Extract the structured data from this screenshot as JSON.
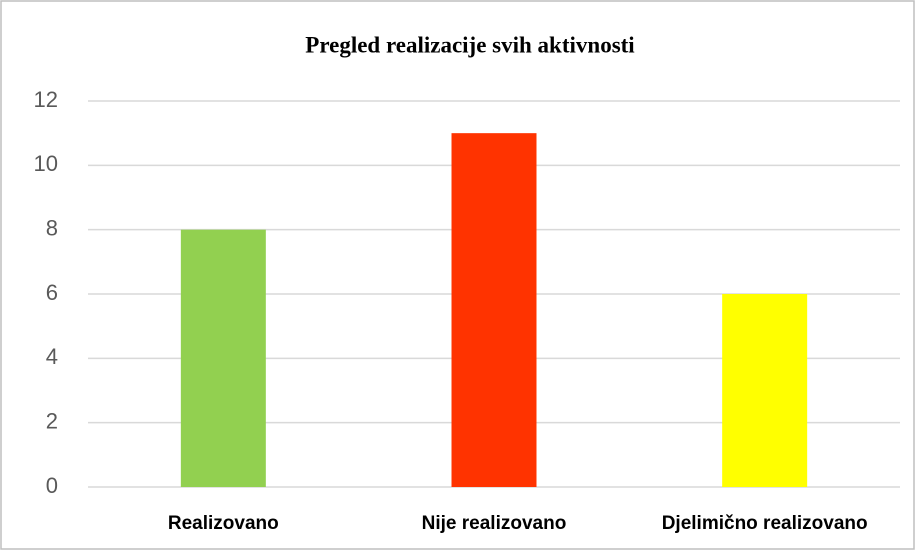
{
  "chart_data": {
    "type": "bar",
    "title": "Pregled realizacije svih aktivnosti",
    "categories": [
      "Realizovano",
      "Nije realizovano",
      "Djelimično realizovano"
    ],
    "values": [
      8,
      11,
      6
    ],
    "colors": [
      "#92d050",
      "#ff3300",
      "#ffff00"
    ],
    "ylim": [
      0,
      12
    ],
    "yticks": [
      0,
      2,
      4,
      6,
      8,
      10,
      12
    ],
    "grid": true
  }
}
